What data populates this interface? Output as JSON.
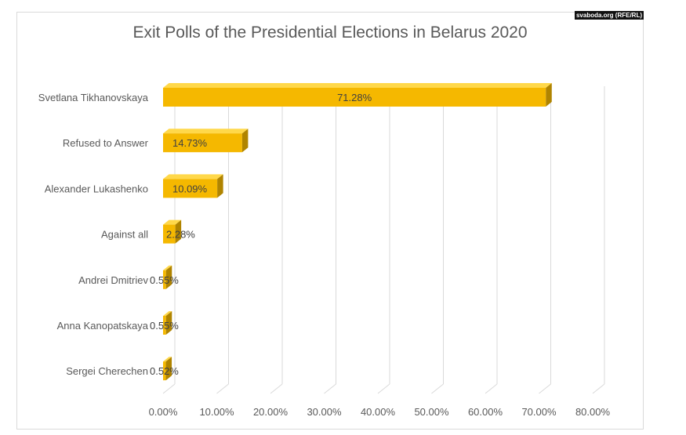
{
  "watermark": "svaboda.org (RFE/RL)",
  "chart_data": {
    "type": "bar",
    "orientation": "horizontal",
    "title": "Exit Polls of the Presidential Elections in Belarus 2020",
    "categories": [
      "Svetlana Tikhanovskaya",
      "Refused to Answer",
      "Alexander Lukashenko",
      "Against all",
      "Andrei Dmitriev",
      "Anna Kanopatskaya",
      "Sergei Cherechen"
    ],
    "values": [
      71.28,
      14.73,
      10.09,
      2.28,
      0.55,
      0.55,
      0.52
    ],
    "data_labels": [
      "71.28%",
      "14.73%",
      "10.09%",
      "2.28%",
      "0.55%",
      "0.55%",
      "0.52%"
    ],
    "xlim": [
      0,
      80
    ],
    "x_ticks": [
      "0.00%",
      "10.00%",
      "20.00%",
      "30.00%",
      "40.00%",
      "50.00%",
      "60.00%",
      "70.00%",
      "80.00%"
    ],
    "grid": true,
    "style": "3d",
    "bar_color": "#f5b800"
  }
}
